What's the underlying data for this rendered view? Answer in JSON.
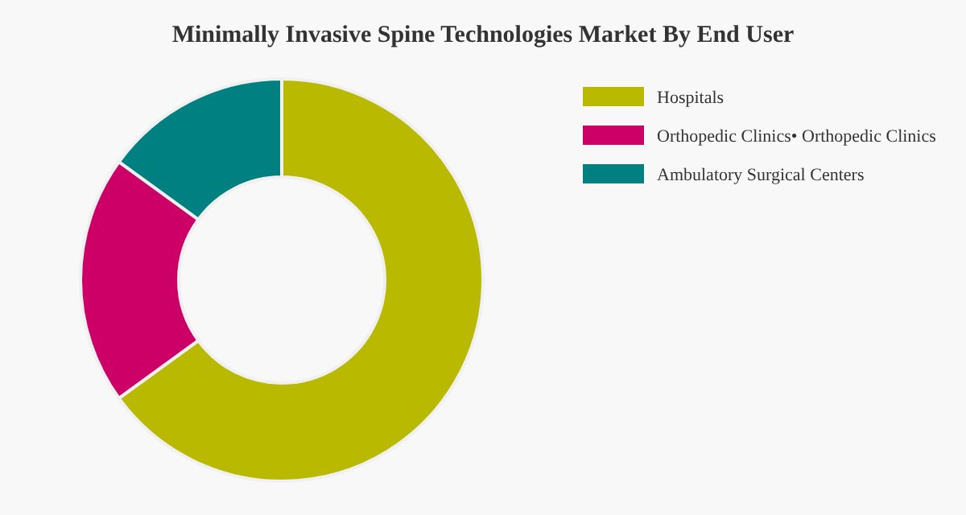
{
  "chart_data": {
    "type": "donut",
    "title": "Minimally Invasive Spine Technologies Market By End User",
    "categories": [
      "Hospitals",
      "Orthopedic Clinics• Orthopedic Clinics",
      "Ambulatory Surgical Centers"
    ],
    "values": [
      65,
      20,
      15
    ],
    "colors": [
      "#b9b900",
      "#cc0066",
      "#008080"
    ],
    "legend": "top right"
  }
}
